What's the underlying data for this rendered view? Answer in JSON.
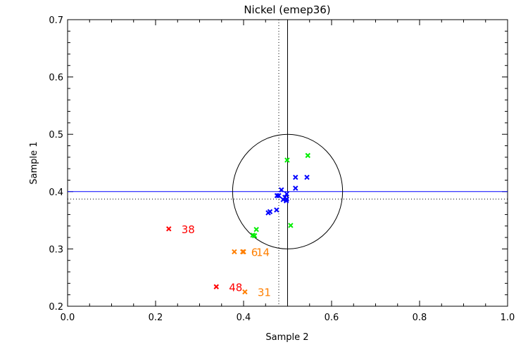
{
  "chart_data": {
    "type": "scatter",
    "title": "Nickel (emep36)",
    "xlabel": "Sample 2",
    "ylabel": "Sample 1",
    "xlim": [
      0.0,
      1.0
    ],
    "ylim": [
      0.2,
      0.7
    ],
    "xticks": [
      "0.0",
      "0.2",
      "0.4",
      "0.6",
      "0.8",
      "1.0"
    ],
    "yticks": [
      "0.2",
      "0.3",
      "0.4",
      "0.5",
      "0.6",
      "0.7"
    ],
    "reference": {
      "x": 0.5,
      "y": 0.4,
      "median_x": 0.48,
      "median_y": 0.387,
      "circle_rx": 0.125,
      "circle_ry": 0.1
    },
    "colors": {
      "blue": "#0000ff",
      "green": "#00ee00",
      "orange": "#ff7f00",
      "red": "#ff0000",
      "axis": "#000000"
    },
    "series": [
      {
        "name": "blue",
        "color": "#0000ff",
        "points": [
          {
            "x": 0.518,
            "y": 0.425
          },
          {
            "x": 0.544,
            "y": 0.425
          },
          {
            "x": 0.518,
            "y": 0.406
          },
          {
            "x": 0.486,
            "y": 0.403
          },
          {
            "x": 0.476,
            "y": 0.393
          },
          {
            "x": 0.48,
            "y": 0.393
          },
          {
            "x": 0.498,
            "y": 0.396
          },
          {
            "x": 0.494,
            "y": 0.39
          },
          {
            "x": 0.498,
            "y": 0.387
          },
          {
            "x": 0.497,
            "y": 0.384
          },
          {
            "x": 0.49,
            "y": 0.386
          },
          {
            "x": 0.475,
            "y": 0.368
          },
          {
            "x": 0.456,
            "y": 0.363
          },
          {
            "x": 0.46,
            "y": 0.365
          }
        ]
      },
      {
        "name": "green",
        "color": "#00ee00",
        "points": [
          {
            "x": 0.546,
            "y": 0.463
          },
          {
            "x": 0.499,
            "y": 0.455
          },
          {
            "x": 0.507,
            "y": 0.341
          },
          {
            "x": 0.429,
            "y": 0.334
          },
          {
            "x": 0.421,
            "y": 0.324
          },
          {
            "x": 0.425,
            "y": 0.323
          }
        ]
      },
      {
        "name": "orange",
        "color": "#ff7f00",
        "points": [
          {
            "x": 0.379,
            "y": 0.295
          },
          {
            "x": 0.398,
            "y": 0.295,
            "label": "6"
          },
          {
            "x": 0.4,
            "y": 0.295,
            "label": "14"
          },
          {
            "x": 0.403,
            "y": 0.225,
            "label": "31"
          }
        ]
      },
      {
        "name": "red",
        "color": "#ff0000",
        "points": [
          {
            "x": 0.23,
            "y": 0.335,
            "label": "38"
          },
          {
            "x": 0.338,
            "y": 0.234,
            "label": "48"
          }
        ]
      }
    ]
  }
}
